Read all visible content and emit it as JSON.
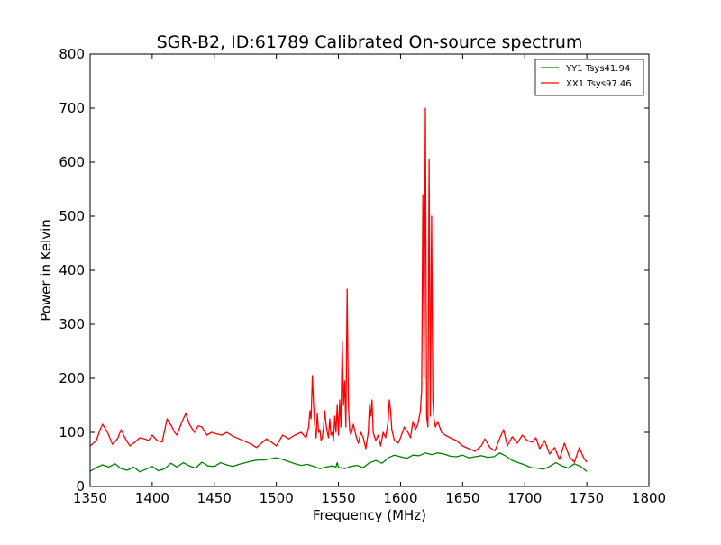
{
  "chart_data": {
    "type": "line",
    "title": "SGR-B2, ID:61789 Calibrated On-source spectrum",
    "xlabel": "Frequency (MHz)",
    "ylabel": "Power in Kelvin",
    "xlim": [
      1350,
      1800
    ],
    "ylim": [
      0,
      800
    ],
    "xticks": [
      "1350",
      "1400",
      "1450",
      "1500",
      "1550",
      "1600",
      "1650",
      "1700",
      "1750",
      "1800"
    ],
    "yticks": [
      "0",
      "100",
      "200",
      "300",
      "400",
      "500",
      "600",
      "700",
      "800"
    ],
    "grid": false,
    "legend_position": "top-right",
    "series": [
      {
        "name": "YY1 Tsys41.94",
        "color": "#008000",
        "x": [
          1350,
          1355,
          1360,
          1365,
          1370,
          1375,
          1380,
          1385,
          1390,
          1395,
          1400,
          1405,
          1410,
          1415,
          1420,
          1425,
          1430,
          1435,
          1440,
          1445,
          1450,
          1455,
          1460,
          1465,
          1470,
          1475,
          1480,
          1485,
          1490,
          1495,
          1500,
          1505,
          1510,
          1515,
          1520,
          1525,
          1530,
          1535,
          1540,
          1545,
          1548,
          1549,
          1550,
          1551,
          1552,
          1555,
          1560,
          1565,
          1570,
          1575,
          1580,
          1585,
          1590,
          1595,
          1600,
          1605,
          1610,
          1615,
          1620,
          1625,
          1630,
          1635,
          1640,
          1645,
          1650,
          1655,
          1660,
          1665,
          1670,
          1675,
          1680,
          1685,
          1690,
          1695,
          1700,
          1705,
          1710,
          1715,
          1720,
          1725,
          1730,
          1735,
          1740,
          1745,
          1750
        ],
        "values": [
          28,
          35,
          40,
          36,
          42,
          33,
          30,
          36,
          27,
          32,
          37,
          29,
          33,
          43,
          36,
          44,
          38,
          34,
          45,
          38,
          37,
          44,
          40,
          37,
          41,
          44,
          47,
          49,
          49,
          51,
          53,
          50,
          46,
          42,
          39,
          41,
          37,
          33,
          36,
          38,
          36,
          44,
          36,
          34,
          35,
          33,
          37,
          39,
          35,
          44,
          48,
          43,
          53,
          58,
          55,
          52,
          58,
          57,
          62,
          59,
          62,
          60,
          56,
          55,
          58,
          53,
          55,
          57,
          54,
          55,
          62,
          56,
          48,
          44,
          40,
          35,
          34,
          32,
          37,
          44,
          38,
          34,
          42,
          37,
          28
        ]
      },
      {
        "name": "XX1 Tsys97.46",
        "color": "#ff0000",
        "x": [
          1350,
          1355,
          1358,
          1360,
          1364,
          1368,
          1372,
          1375,
          1378,
          1382,
          1386,
          1390,
          1394,
          1397,
          1400,
          1404,
          1408,
          1412,
          1416,
          1418,
          1420,
          1424,
          1427,
          1430,
          1434,
          1437,
          1440,
          1444,
          1448,
          1452,
          1456,
          1460,
          1465,
          1470,
          1475,
          1480,
          1484,
          1488,
          1492,
          1496,
          1500,
          1505,
          1510,
          1515,
          1520,
          1524,
          1526,
          1527,
          1528,
          1529,
          1530,
          1531,
          1532,
          1533,
          1534,
          1535,
          1536,
          1537,
          1538,
          1539,
          1540,
          1541,
          1542,
          1543,
          1544,
          1545,
          1546,
          1547,
          1548,
          1549,
          1550,
          1551,
          1552,
          1553,
          1554,
          1555,
          1556,
          1557,
          1558,
          1559,
          1560,
          1562,
          1564,
          1566,
          1568,
          1570,
          1572,
          1574,
          1575,
          1576,
          1577,
          1578,
          1580,
          1582,
          1584,
          1586,
          1588,
          1590,
          1591,
          1592,
          1593,
          1595,
          1598,
          1600,
          1603,
          1606,
          1608,
          1610,
          1612,
          1614,
          1616,
          1617,
          1618,
          1619,
          1620,
          1621,
          1622,
          1623,
          1624,
          1625,
          1626,
          1627,
          1628,
          1630,
          1633,
          1636,
          1640,
          1645,
          1650,
          1655,
          1660,
          1665,
          1668,
          1672,
          1676,
          1680,
          1683,
          1686,
          1690,
          1694,
          1698,
          1702,
          1706,
          1709,
          1712,
          1716,
          1720,
          1724,
          1728,
          1732,
          1736,
          1740,
          1744,
          1747,
          1750
        ],
        "values": [
          75,
          85,
          105,
          115,
          100,
          78,
          88,
          105,
          90,
          75,
          82,
          90,
          88,
          85,
          95,
          85,
          82,
          125,
          110,
          100,
          95,
          120,
          135,
          115,
          100,
          112,
          110,
          95,
          100,
          97,
          95,
          100,
          93,
          88,
          83,
          78,
          72,
          80,
          88,
          82,
          75,
          95,
          88,
          95,
          100,
          90,
          110,
          140,
          125,
          205,
          150,
          110,
          90,
          135,
          100,
          105,
          85,
          90,
          110,
          140,
          115,
          100,
          90,
          125,
          95,
          100,
          85,
          130,
          100,
          150,
          95,
          160,
          110,
          270,
          150,
          195,
          110,
          365,
          150,
          105,
          95,
          115,
          95,
          80,
          100,
          90,
          70,
          100,
          150,
          130,
          160,
          100,
          85,
          95,
          75,
          100,
          90,
          120,
          160,
          140,
          105,
          85,
          80,
          90,
          110,
          100,
          90,
          120,
          105,
          115,
          140,
          180,
          540,
          200,
          700,
          130,
          110,
          605,
          130,
          500,
          160,
          125,
          110,
          120,
          100,
          95,
          90,
          85,
          75,
          70,
          65,
          75,
          88,
          72,
          66,
          90,
          105,
          75,
          92,
          80,
          95,
          85,
          82,
          90,
          70,
          85,
          60,
          72,
          50,
          80,
          55,
          45,
          72,
          55,
          45
        ]
      }
    ]
  }
}
